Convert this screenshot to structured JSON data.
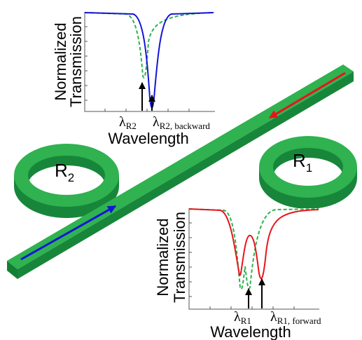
{
  "top_plot": {
    "y_label": [
      "Normalized",
      "Transmission"
    ],
    "x_label": "Wavelength",
    "markers": [
      {
        "symbol": "λ",
        "subscript": "R2"
      },
      {
        "symbol": "λ",
        "subscript": "R2, backward"
      }
    ]
  },
  "rings": [
    {
      "symbol": "R",
      "subscript": "2"
    },
    {
      "symbol": "R",
      "subscript": "1"
    }
  ],
  "bottom_plot": {
    "y_label": [
      "Normalized",
      "Transmission"
    ],
    "x_label": "Wavelength",
    "markers": [
      {
        "symbol": "λ",
        "subscript": "R1"
      },
      {
        "symbol": "λ",
        "subscript": "R1, forward"
      }
    ]
  }
}
